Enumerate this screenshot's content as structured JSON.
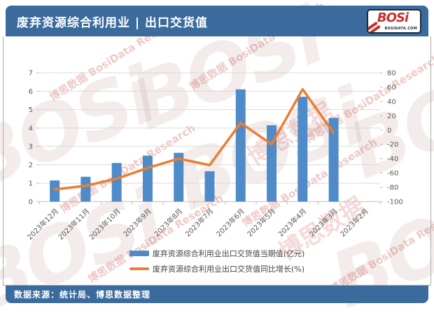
{
  "header": {
    "title": "废弃资源综合利用业 | 出口交货值",
    "logo": {
      "name": "BOSi",
      "domain": "BOSIDATA.COM"
    }
  },
  "footer": {
    "source": "数据来源：统计局、博思数据整理"
  },
  "watermark": {
    "brand": "BOSi",
    "text": "博思数据 BosiData Research",
    "cn": "博思数据"
  },
  "chart_data": {
    "type": "bar",
    "subtype": "bar-line-combo",
    "title": "废弃资源综合利用业 | 出口交货值",
    "categories": [
      "2023年12月",
      "2023年11月",
      "2023年10月",
      "2023年9月",
      "2023年8月",
      "2023年7月",
      "2023年6月",
      "2023年5月",
      "2023年4月",
      "2023年3月",
      "2023年2月"
    ],
    "series": [
      {
        "name": "废弃资源综合利用业出口交货值当期值(亿元)",
        "type": "bar",
        "axis": "left",
        "color": "#4F8BC9",
        "values": [
          1.15,
          1.35,
          2.1,
          2.5,
          2.65,
          1.65,
          6.1,
          4.15,
          5.7,
          4.55,
          null
        ]
      },
      {
        "name": "废弃资源综合利用业出口交货值同比增长(%)",
        "type": "line",
        "axis": "right",
        "color": "#ED7D31",
        "values": [
          -83,
          -78,
          -68,
          -53,
          -40,
          -49,
          10,
          -20,
          57,
          -4,
          null
        ]
      }
    ],
    "left_axis": {
      "min": 0,
      "max": 7,
      "step": 1,
      "ticks": [
        0,
        1,
        2,
        3,
        4,
        5,
        6,
        7
      ]
    },
    "right_axis": {
      "min": -100,
      "max": 80,
      "step": 20,
      "ticks": [
        80,
        60,
        40,
        20,
        0,
        -20,
        -40,
        -60,
        -80,
        -100
      ]
    },
    "grid": true,
    "legend_position": "bottom"
  },
  "colors": {
    "accent_blue": "#3A6B9C",
    "bar_blue": "#4F8BC9",
    "line_orange": "#ED7D31",
    "axis_text": "#595959",
    "gridline": "#D9D9D9",
    "axis_line": "#BFBFBF",
    "logo_red": "#C5302B"
  }
}
